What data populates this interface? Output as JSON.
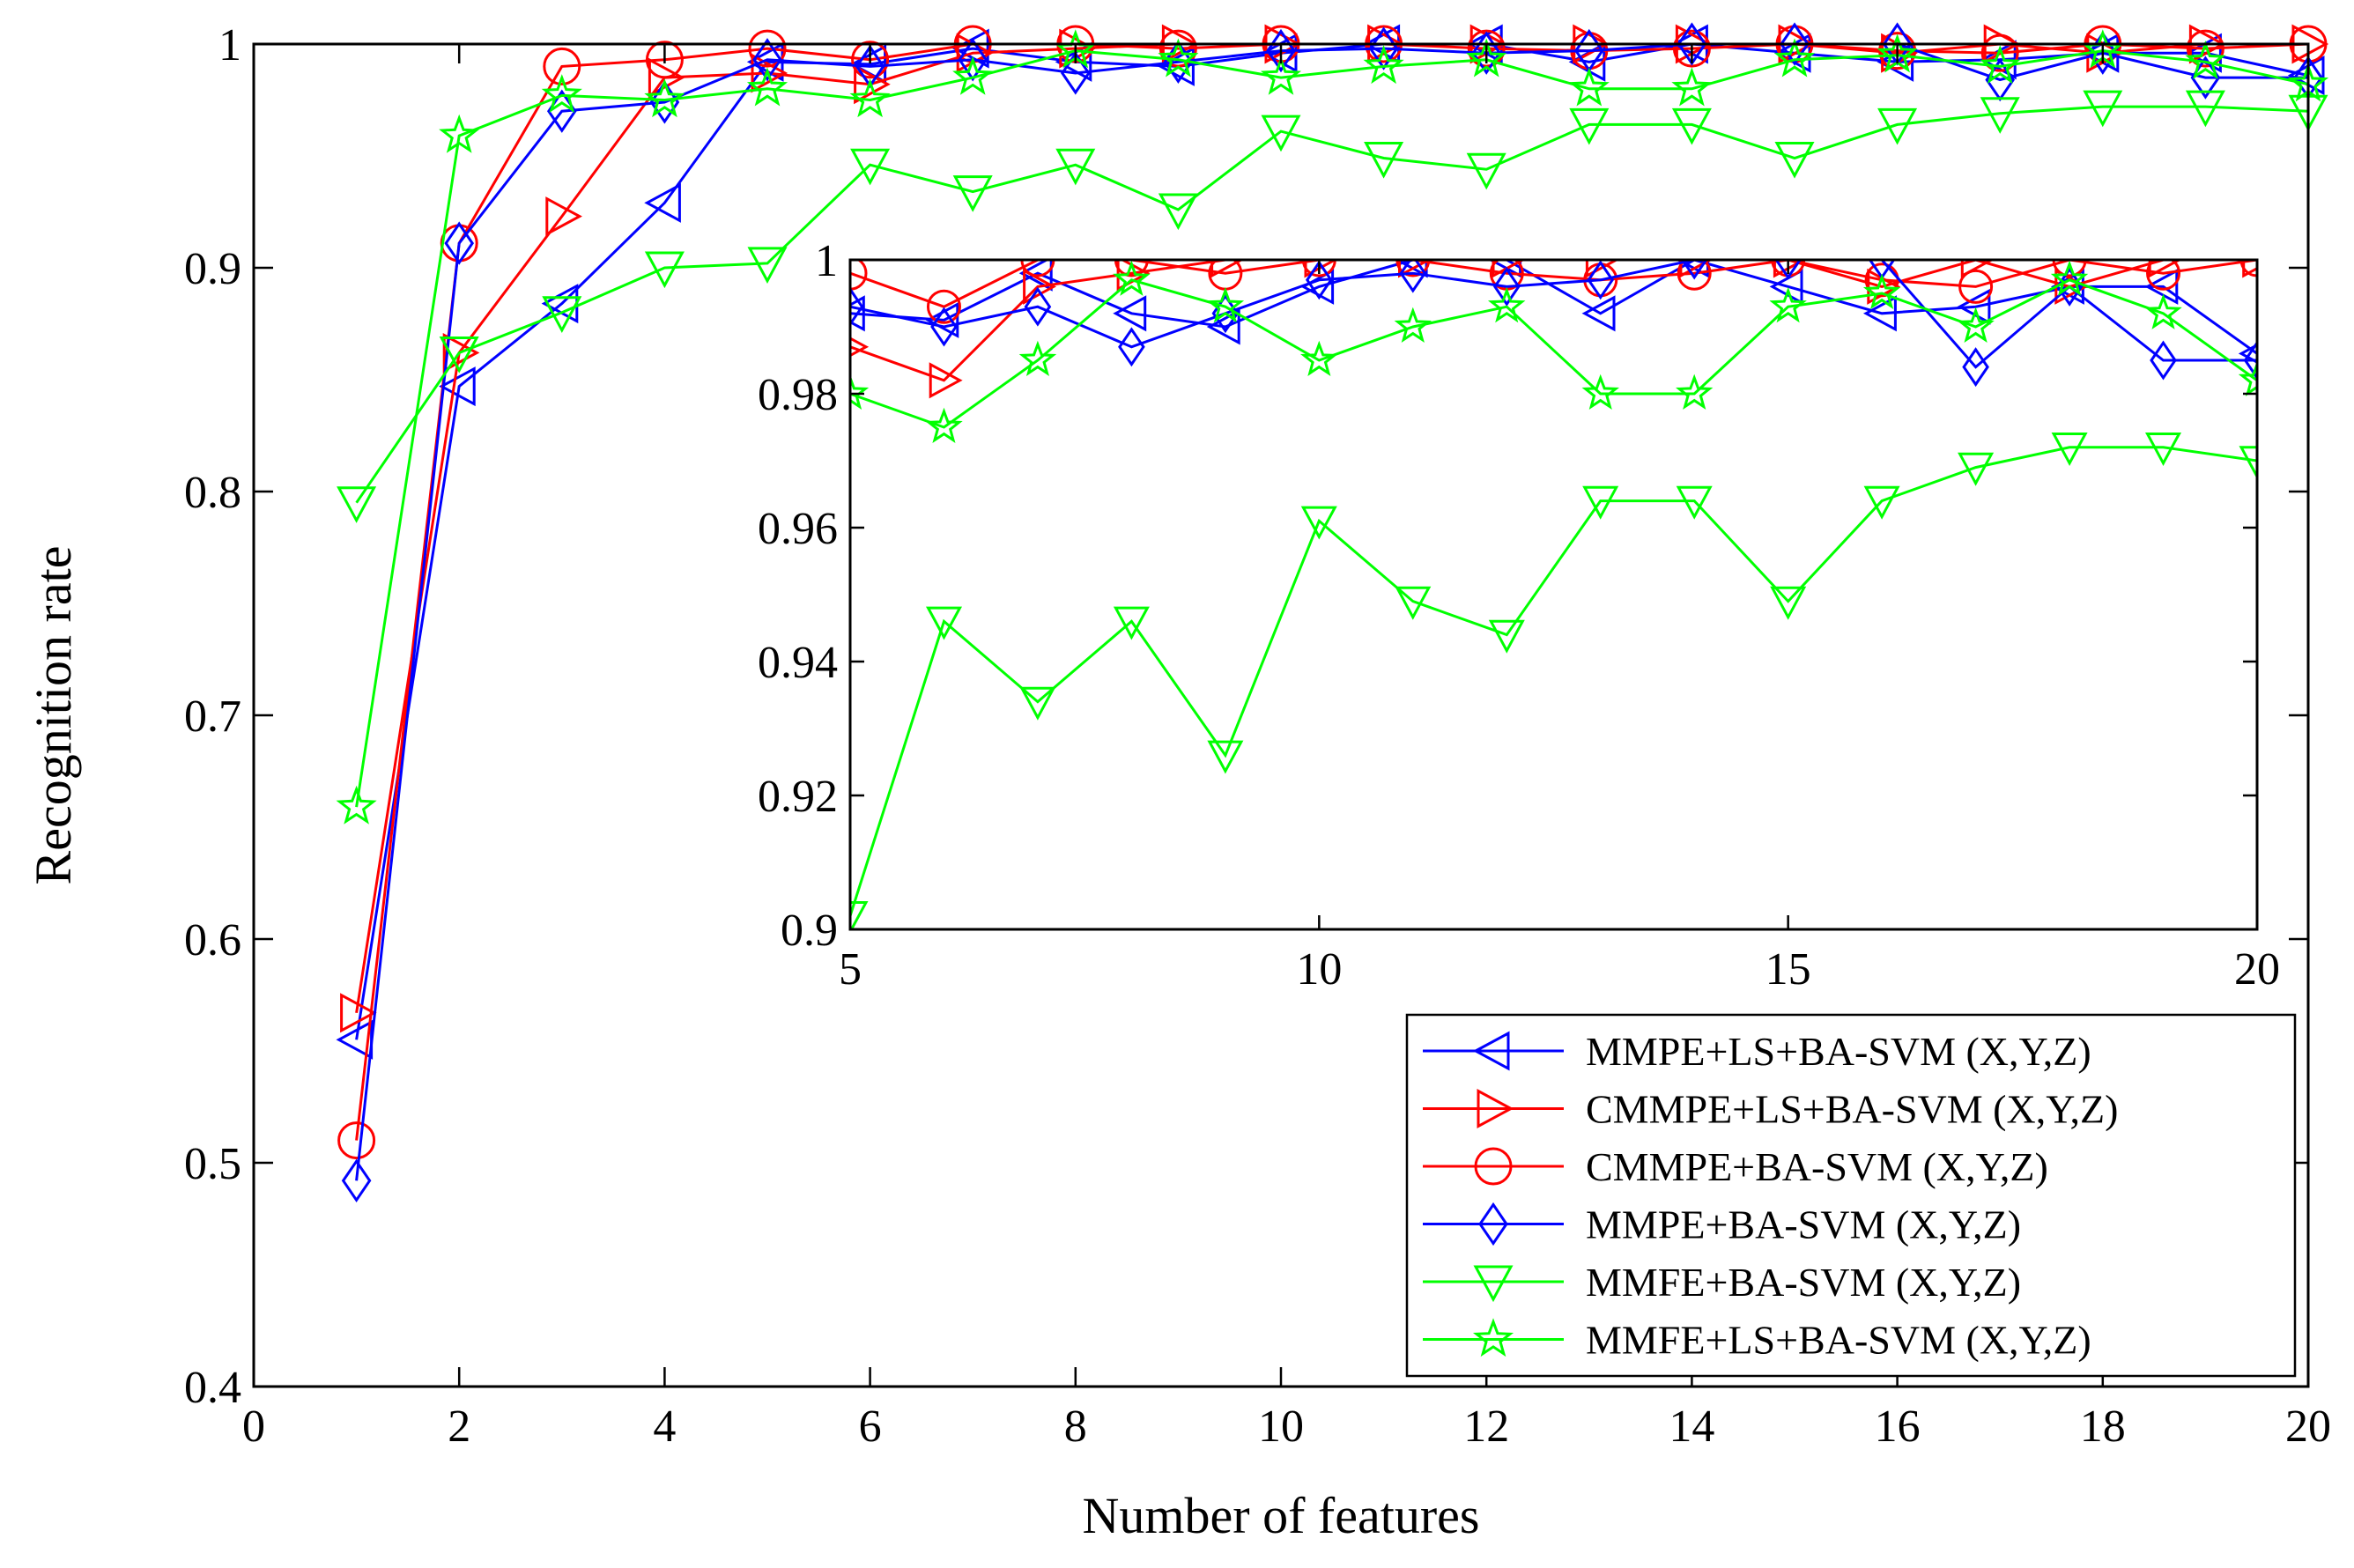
{
  "chart_data": {
    "type": "line",
    "xlabel": "Number of features",
    "ylabel": "Recognition rate",
    "xlim": [
      0,
      20
    ],
    "ylim": [
      0.4,
      1.0
    ],
    "xticks": [
      0,
      2,
      4,
      6,
      8,
      10,
      12,
      14,
      16,
      18,
      20
    ],
    "xtick_labels": [
      "0",
      "2",
      "4",
      "6",
      "8",
      "10",
      "12",
      "14",
      "16",
      "18",
      "20"
    ],
    "yticks": [
      0.4,
      0.5,
      0.6,
      0.7,
      0.8,
      0.9,
      1.0
    ],
    "ytick_labels": [
      "0.4",
      "0.5",
      "0.6",
      "0.7",
      "0.8",
      "0.9",
      "1"
    ],
    "grid": false,
    "legend_position": "bottom-right",
    "x": [
      1,
      2,
      3,
      4,
      5,
      6,
      7,
      8,
      9,
      10,
      11,
      12,
      13,
      14,
      15,
      16,
      17,
      18,
      19,
      20
    ],
    "series": [
      {
        "name": "MMPE+LS+BA-SVM (X,Y,Z)",
        "color": "#0000ff",
        "marker": "triangle-left",
        "values": [
          0.555,
          0.847,
          0.884,
          0.929,
          0.992,
          0.991,
          0.998,
          0.992,
          0.99,
          0.996,
          1.0,
          1.0,
          0.992,
          1.0,
          0.996,
          0.992,
          0.993,
          0.996,
          0.996,
          0.986
        ]
      },
      {
        "name": "CMMPE+LS+BA-SVM (X,Y,Z)",
        "color": "#ff0000",
        "marker": "triangle-right",
        "values": [
          0.567,
          0.862,
          0.923,
          0.985,
          0.987,
          0.982,
          0.996,
          0.998,
          1.0,
          1.0,
          1.0,
          1.0,
          1.0,
          1.0,
          1.0,
          0.996,
          1.0,
          0.996,
          1.0,
          1.0
        ]
      },
      {
        "name": "CMMPE+BA-SVM (X,Y,Z)",
        "color": "#ff0000",
        "marker": "circle",
        "values": [
          0.51,
          0.911,
          0.99,
          0.993,
          0.998,
          0.993,
          1.0,
          1.0,
          0.998,
          1.0,
          1.0,
          0.998,
          0.997,
          0.998,
          1.0,
          0.997,
          0.996,
          1.0,
          0.998,
          1.0
        ]
      },
      {
        "name": "MMPE+BA-SVM (X,Y,Z)",
        "color": "#0000ff",
        "marker": "diamond",
        "values": [
          0.492,
          0.911,
          0.97,
          0.974,
          0.993,
          0.99,
          0.993,
          0.987,
          0.992,
          0.997,
          0.998,
          0.996,
          0.997,
          1.0,
          1.0,
          1.0,
          0.984,
          0.996,
          0.985,
          0.985
        ]
      },
      {
        "name": "MMFE+BA-SVM (X,Y,Z)",
        "color": "#00ff00",
        "marker": "triangle-down",
        "values": [
          0.795,
          0.862,
          0.88,
          0.9,
          0.902,
          0.946,
          0.934,
          0.946,
          0.926,
          0.961,
          0.949,
          0.944,
          0.964,
          0.964,
          0.949,
          0.964,
          0.969,
          0.972,
          0.972,
          0.97
        ]
      },
      {
        "name": "MMFE+LS+BA-SVM (X,Y,Z)",
        "color": "#00ff00",
        "marker": "star",
        "values": [
          0.659,
          0.959,
          0.977,
          0.975,
          0.98,
          0.975,
          0.985,
          0.997,
          0.993,
          0.985,
          0.99,
          0.993,
          0.98,
          0.98,
          0.993,
          0.995,
          0.99,
          0.997,
          0.992,
          0.982
        ]
      }
    ],
    "inset": {
      "xlim": [
        5,
        20
      ],
      "ylim": [
        0.9,
        1.0
      ],
      "xticks": [
        5,
        10,
        15,
        20
      ],
      "xtick_labels": [
        "5",
        "10",
        "15",
        "20"
      ],
      "yticks": [
        0.9,
        0.92,
        0.94,
        0.96,
        0.98,
        1.0
      ],
      "ytick_labels": [
        "0.9",
        "0.92",
        "0.94",
        "0.96",
        "0.98",
        "1"
      ]
    }
  }
}
